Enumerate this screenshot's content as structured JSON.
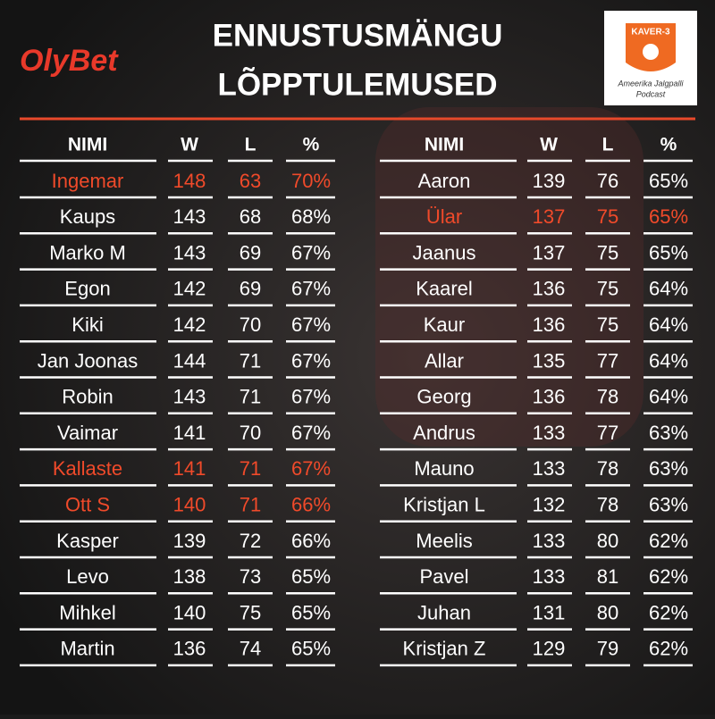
{
  "brand": "OlyBet",
  "title": [
    "ENNUSTUSMÄNGU",
    "LÕPPTULEMUSED"
  ],
  "logo": {
    "name": "KAVER-3",
    "subtitle": [
      "Ameerika Jalgpalli",
      "Podcast"
    ]
  },
  "tables": [
    {
      "header": [
        "NIMI",
        "W",
        "L",
        "%"
      ],
      "highlighted_rows": [
        0,
        8,
        9
      ],
      "rows": [
        [
          "Ingemar",
          148,
          63,
          "70%"
        ],
        [
          "Kaups",
          143,
          68,
          "68%"
        ],
        [
          "Marko M",
          143,
          69,
          "67%"
        ],
        [
          "Egon",
          142,
          69,
          "67%"
        ],
        [
          "Kiki",
          142,
          70,
          "67%"
        ],
        [
          "Jan Joonas",
          144,
          71,
          "67%"
        ],
        [
          "Robin",
          143,
          71,
          "67%"
        ],
        [
          "Vaimar",
          141,
          70,
          "67%"
        ],
        [
          "Kallaste",
          141,
          71,
          "67%"
        ],
        [
          "Ott S",
          140,
          71,
          "66%"
        ],
        [
          "Kasper",
          139,
          72,
          "66%"
        ],
        [
          "Levo",
          138,
          73,
          "65%"
        ],
        [
          "Mihkel",
          140,
          75,
          "65%"
        ],
        [
          "Martin",
          136,
          74,
          "65%"
        ]
      ]
    },
    {
      "header": [
        "NIMI",
        "W",
        "L",
        "%"
      ],
      "highlighted_rows": [
        1
      ],
      "rows": [
        [
          "Aaron",
          139,
          76,
          "65%"
        ],
        [
          "Ülar",
          137,
          75,
          "65%"
        ],
        [
          "Jaanus",
          137,
          75,
          "65%"
        ],
        [
          "Kaarel",
          136,
          75,
          "64%"
        ],
        [
          "Kaur",
          136,
          75,
          "64%"
        ],
        [
          "Allar",
          135,
          77,
          "64%"
        ],
        [
          "Georg",
          136,
          78,
          "64%"
        ],
        [
          "Andrus",
          133,
          77,
          "63%"
        ],
        [
          "Mauno",
          133,
          78,
          "63%"
        ],
        [
          "Kristjan L",
          132,
          78,
          "63%"
        ],
        [
          "Meelis",
          133,
          80,
          "62%"
        ],
        [
          "Pavel",
          133,
          81,
          "62%"
        ],
        [
          "Juhan",
          131,
          80,
          "62%"
        ],
        [
          "Kristjan Z",
          129,
          79,
          "62%"
        ]
      ]
    }
  ]
}
